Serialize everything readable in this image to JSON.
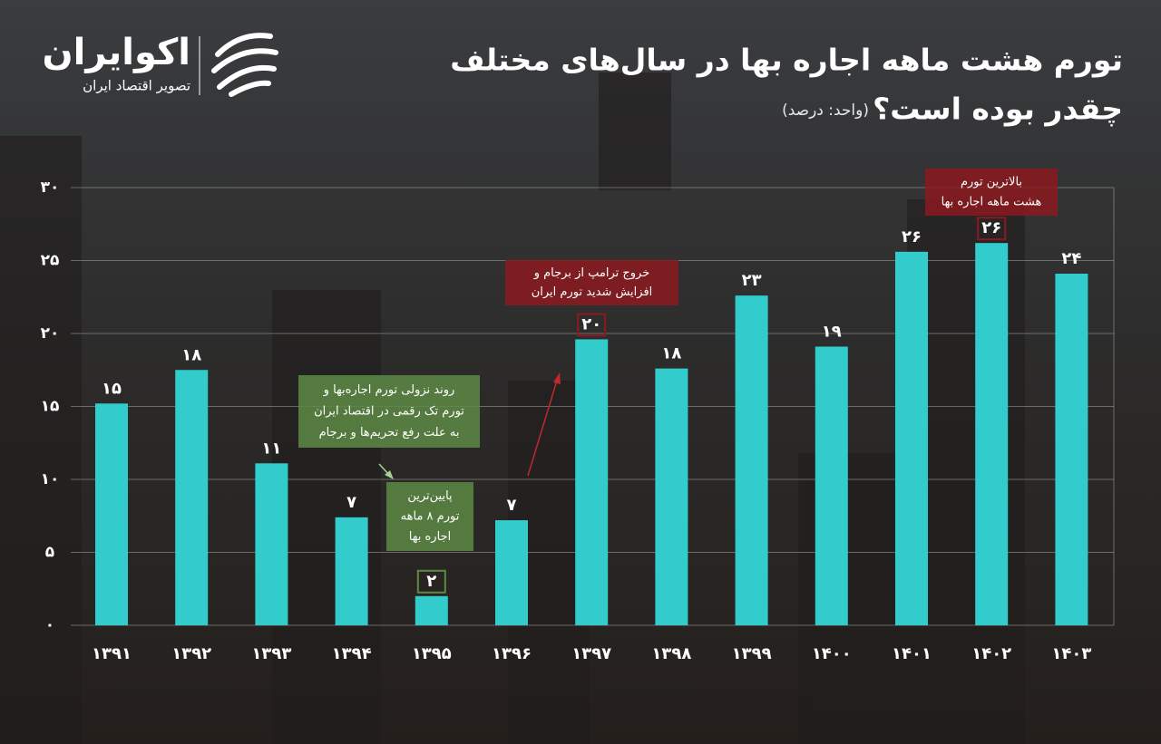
{
  "logo": {
    "name": "اکوایران",
    "tagline": "تصویر اقتصاد ایران"
  },
  "chart_data": {
    "type": "bar",
    "title": [
      "تورم هشت ماهه اجاره بها در سال‌های مختلف",
      "چقدر بوده است؟"
    ],
    "subtitle": "(واحد: درصد)",
    "categories": [
      "۱۳۹۱",
      "۱۳۹۲",
      "۱۳۹۳",
      "۱۳۹۴",
      "۱۳۹۵",
      "۱۳۹۶",
      "۱۳۹۷",
      "۱۳۹۸",
      "۱۳۹۹",
      "۱۴۰۰",
      "۱۴۰۱",
      "۱۴۰۲",
      "۱۴۰۳"
    ],
    "values": [
      15.2,
      17.5,
      11.1,
      7.4,
      2.0,
      7.2,
      19.6,
      17.6,
      22.6,
      19.1,
      25.6,
      26.2,
      24.1
    ],
    "value_labels": [
      "۱۵",
      "۱۸",
      "۱۱",
      "۷",
      "۲",
      "۷",
      "۲۰",
      "۱۸",
      "۲۳",
      "۱۹",
      "۲۶",
      "۲۶",
      "۲۴"
    ],
    "color": "#33cccc",
    "ylim": [
      0,
      30
    ],
    "yticks": [
      {
        "value": 0,
        "label": "۰"
      },
      {
        "value": 5,
        "label": "۵"
      },
      {
        "value": 10,
        "label": "۱۰"
      },
      {
        "value": 15,
        "label": "۱۵"
      },
      {
        "value": 20,
        "label": "۲۰"
      },
      {
        "value": 25,
        "label": "۲۵"
      },
      {
        "value": 30,
        "label": "۳۰"
      }
    ],
    "grid": true,
    "annotations": [
      {
        "lines": [
          "بالاترین تورم",
          "هشت ماهه اجاره بها"
        ],
        "color": "#8b1a1f"
      },
      {
        "lines": [
          "خروج ترامپ از برجام و",
          "افزایش شدید تورم ایران"
        ],
        "color": "#8b1a1f"
      },
      {
        "lines": [
          "روند نزولی تورم اجاره‌بها و",
          "تورم تک رقمی در اقتصاد ایران",
          "به علت رفع تحریم‌ها و برجام"
        ],
        "color": "#5d8a45"
      },
      {
        "lines": [
          "پایین‌ترین",
          "تورم ۸ ماهه",
          "اجاره بها"
        ],
        "color": "#5d8a45"
      }
    ]
  }
}
